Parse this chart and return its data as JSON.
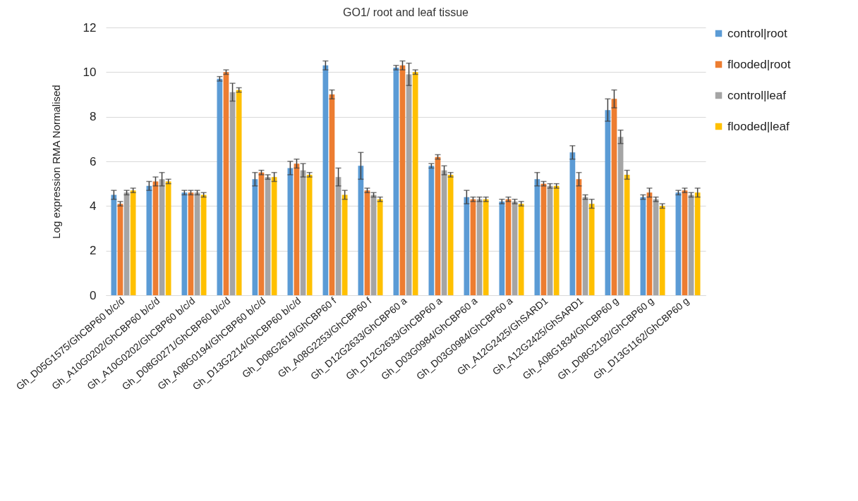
{
  "chart_data": {
    "type": "bar",
    "title": "GO1/ root and leaf tissue",
    "ylabel": "Log expression RMA Normalised",
    "categories": [
      "Gh_D05G1575/GhCBP60 b/c/d",
      "Gh_A10G0202/GhCBP60 b/c/d",
      "Gh_A10G0202/GhCBP60 b/c/d",
      "Gh_D08G0271/GhCBP60 b/c/d",
      "Gh_A08G0194/GhCBP60 b/c/d",
      "Gh_D13G2214/GhCBP60 b/c/d",
      "Gh_D08G2619/GhCBP60 f",
      "Gh_A08G2253/GhCBP60 f",
      "Gh_D12G2633/GhCBP60 a",
      "Gh_D12G2633/GhCBP60 a",
      "Gh_D03G0984/GhCBP60 a",
      "Gh_D03G0984/GhCBP60 a",
      "Gh_A12G2425/GhSARD1",
      "Gh_A12G2425/GhSARD1",
      "Gh_A08G1834/GhCBP60 g",
      "Gh_D08G2192/GhCBP60 g",
      "Gh_D13G1162/GhCBP60 g"
    ],
    "series": [
      {
        "name": "control|root",
        "color": "#5b9bd5",
        "values": [
          4.5,
          4.9,
          4.6,
          9.7,
          5.2,
          5.7,
          10.3,
          5.8,
          10.2,
          5.8,
          4.4,
          4.2,
          5.2,
          6.4,
          8.3,
          4.4,
          4.6
        ],
        "errors": [
          0.2,
          0.2,
          0.1,
          0.1,
          0.3,
          0.3,
          0.2,
          0.6,
          0.1,
          0.1,
          0.3,
          0.1,
          0.3,
          0.3,
          0.5,
          0.1,
          0.1
        ]
      },
      {
        "name": "flooded|root",
        "color": "#ed7d31",
        "values": [
          4.1,
          5.1,
          4.6,
          10.0,
          5.5,
          5.9,
          9.0,
          4.7,
          10.3,
          6.2,
          4.3,
          4.3,
          5.0,
          5.2,
          8.8,
          4.6,
          4.7
        ],
        "errors": [
          0.1,
          0.2,
          0.1,
          0.1,
          0.1,
          0.2,
          0.2,
          0.1,
          0.2,
          0.1,
          0.1,
          0.1,
          0.1,
          0.3,
          0.4,
          0.2,
          0.1
        ]
      },
      {
        "name": "control|leaf",
        "color": "#a5a5a5",
        "values": [
          4.6,
          5.2,
          4.6,
          9.1,
          5.3,
          5.6,
          5.3,
          4.5,
          9.9,
          5.6,
          4.3,
          4.2,
          4.9,
          4.4,
          7.1,
          4.3,
          4.5
        ],
        "errors": [
          0.1,
          0.3,
          0.1,
          0.4,
          0.1,
          0.3,
          0.4,
          0.1,
          0.5,
          0.2,
          0.1,
          0.1,
          0.1,
          0.1,
          0.3,
          0.1,
          0.1
        ]
      },
      {
        "name": "flooded|leaf",
        "color": "#ffc000",
        "values": [
          4.7,
          5.1,
          4.5,
          9.2,
          5.3,
          5.4,
          4.5,
          4.3,
          10.0,
          5.4,
          4.3,
          4.1,
          4.9,
          4.1,
          5.4,
          4.0,
          4.6
        ],
        "errors": [
          0.1,
          0.1,
          0.1,
          0.1,
          0.2,
          0.1,
          0.2,
          0.1,
          0.1,
          0.1,
          0.1,
          0.1,
          0.1,
          0.2,
          0.2,
          0.1,
          0.2
        ]
      }
    ],
    "ylim": [
      0,
      12
    ],
    "yticks": [
      0,
      2,
      4,
      6,
      8,
      10,
      12
    ],
    "grid": "y",
    "legend": "top right"
  }
}
